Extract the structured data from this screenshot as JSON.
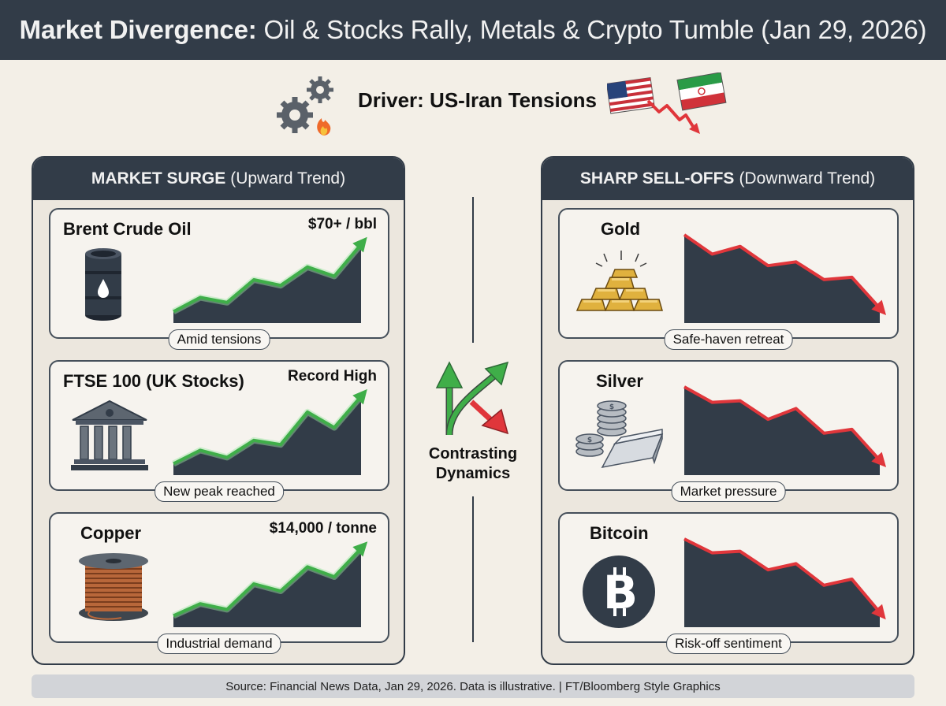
{
  "header": {
    "title_bold": "Market Divergence:",
    "title_rest": " Oil & Stocks Rally, Metals & Crypto Tumble (Jan 29, 2026)"
  },
  "driver": {
    "label": "Driver: US-Iran Tensions",
    "icons": [
      "gears-fire-icon",
      "us-flag-icon",
      "iran-flag-icon",
      "down-arrow-icon"
    ]
  },
  "surge_panel": {
    "title_bold": "MARKET SURGE",
    "title_rest": "(Upward Trend)",
    "accent": "#3fae49",
    "cards": [
      {
        "name": "Brent Crude Oil",
        "value": "$70+ / bbl",
        "caption": "Amid tensions",
        "icon": "oil-barrel-icon",
        "trend": [
          0.05,
          0.25,
          0.18,
          0.5,
          0.42,
          0.68,
          0.55,
          1.0
        ]
      },
      {
        "name": "FTSE 100 (UK Stocks)",
        "value": "Record High",
        "caption": "New peak reached",
        "icon": "bank-building-icon",
        "trend": [
          0.05,
          0.24,
          0.14,
          0.38,
          0.32,
          0.78,
          0.56,
          1.0
        ]
      },
      {
        "name": "Copper",
        "value": "$14,000 / tonne",
        "caption": "Industrial demand",
        "icon": "copper-spool-icon",
        "trend": [
          0.05,
          0.22,
          0.14,
          0.5,
          0.4,
          0.74,
          0.6,
          1.0
        ]
      }
    ]
  },
  "center": {
    "label_line1": "Contrasting",
    "label_line2": "Dynamics",
    "icon": "diverging-arrows-icon"
  },
  "selloff_panel": {
    "title_bold": "SHARP SELL-OFFS",
    "title_rest": "(Downward Trend)",
    "accent": "#e0363b",
    "cards": [
      {
        "name": "Gold",
        "caption": "Safe-haven retreat",
        "icon": "gold-bars-icon",
        "trend": [
          1.0,
          0.75,
          0.85,
          0.6,
          0.65,
          0.42,
          0.45,
          0.05
        ]
      },
      {
        "name": "Silver",
        "caption": "Market pressure",
        "icon": "silver-coins-bar-icon",
        "trend": [
          1.0,
          0.8,
          0.82,
          0.58,
          0.72,
          0.4,
          0.45,
          0.05
        ]
      },
      {
        "name": "Bitcoin",
        "caption": "Risk-off sentiment",
        "icon": "bitcoin-icon",
        "trend": [
          1.0,
          0.82,
          0.84,
          0.6,
          0.68,
          0.4,
          0.48,
          0.05
        ]
      }
    ]
  },
  "footer": {
    "source": "Source: Financial News Data, Jan 29, 2026. Data is illustrative. | FT/Bloomberg Style Graphics"
  },
  "colors": {
    "navy": "#323c48",
    "up_green": "#3fae49",
    "down_red": "#e0363b",
    "background": "#f3efe7"
  }
}
